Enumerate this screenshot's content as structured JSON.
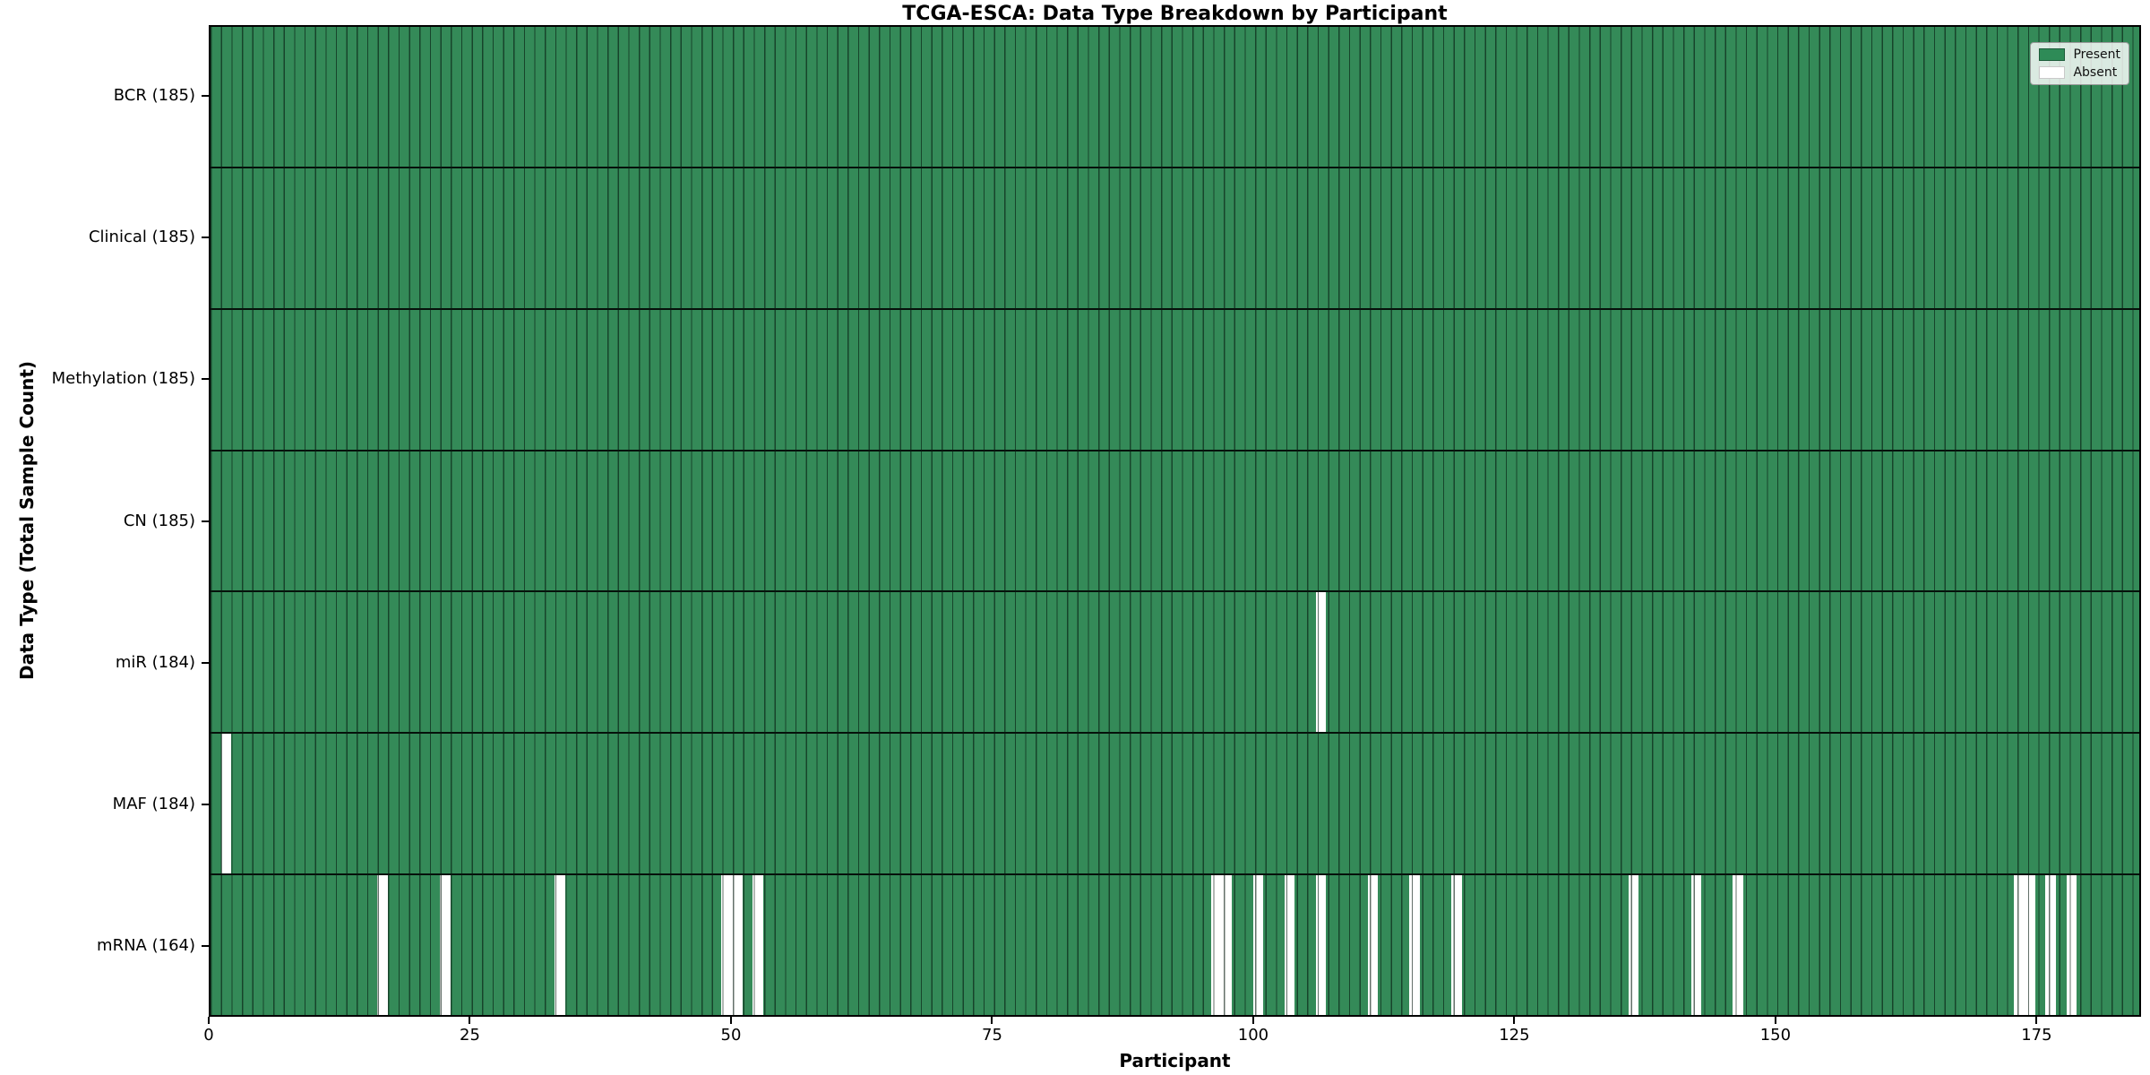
{
  "title": "TCGA-ESCA: Data Type Breakdown by Participant",
  "x_axis": {
    "label": "Participant",
    "ticks": [
      0,
      25,
      50,
      75,
      100,
      125,
      150,
      175
    ]
  },
  "y_axis": {
    "label": "Data Type (Total Sample Count)"
  },
  "legend": {
    "present_label": "Present",
    "absent_label": "Absent"
  },
  "colors": {
    "present": "#348a58",
    "absent": "#ffffff",
    "bar_edge": "rgba(5,25,15,0.62)",
    "row_divider": "#000000",
    "legend_present_swatch": "#2e8b57",
    "legend_absent_swatch": "#ffffff"
  },
  "chart_data": {
    "type": "heatmap",
    "title": "TCGA-ESCA: Data Type Breakdown by Participant",
    "xlabel": "Participant",
    "ylabel": "Data Type (Total Sample Count)",
    "n_participants": 185,
    "x_ticks": [
      0,
      25,
      50,
      75,
      100,
      125,
      150,
      175
    ],
    "xlim": [
      0,
      185
    ],
    "legend_position": "upper right",
    "states": {
      "present": 1,
      "absent": 0
    },
    "rows": [
      {
        "label": "BCR (185)",
        "data_type": "BCR",
        "total": 185,
        "absent_participants": []
      },
      {
        "label": "Clinical (185)",
        "data_type": "Clinical",
        "total": 185,
        "absent_participants": []
      },
      {
        "label": "Methylation (185)",
        "data_type": "Methylation",
        "total": 185,
        "absent_participants": []
      },
      {
        "label": "CN (185)",
        "data_type": "CN",
        "total": 185,
        "absent_participants": []
      },
      {
        "label": "miR (184)",
        "data_type": "miR",
        "total": 184,
        "absent_participants": [
          107
        ]
      },
      {
        "label": "MAF (184)",
        "data_type": "MAF",
        "total": 184,
        "absent_participants": [
          2
        ]
      },
      {
        "label": "mRNA (164)",
        "data_type": "mRNA",
        "total": 164,
        "absent_participants": [
          17,
          23,
          34,
          50,
          51,
          53,
          97,
          98,
          101,
          104,
          107,
          112,
          116,
          120,
          137,
          143,
          147,
          174,
          175,
          177,
          179
        ]
      }
    ]
  }
}
